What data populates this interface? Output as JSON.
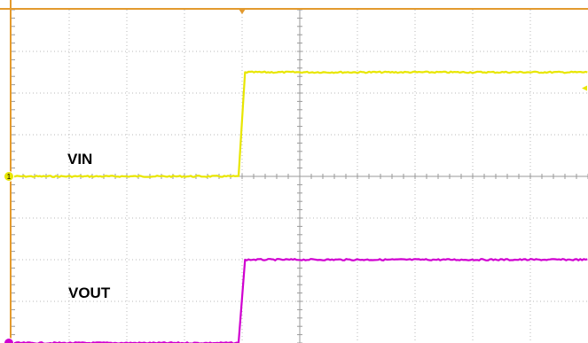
{
  "chart_data": {
    "type": "line",
    "title": "",
    "xlabel": "",
    "ylabel": "",
    "grid": true,
    "x_divisions": 10,
    "y_divisions": 8,
    "xlim": [
      0,
      10
    ],
    "ylim": [
      -4,
      4
    ],
    "trigger_position_div": 4,
    "series": [
      {
        "name": "VIN",
        "channel": "1",
        "color": "#e8e600",
        "x": [
          0,
          3.95,
          4.05,
          10
        ],
        "values": [
          0,
          0,
          2.5,
          2.5
        ]
      },
      {
        "name": "VOUT",
        "channel": "",
        "color": "#d000d0",
        "x": [
          0,
          3.95,
          4.05,
          10
        ],
        "values": [
          -4,
          -4,
          -2,
          -2
        ]
      }
    ]
  },
  "colors": {
    "frame": "#e39a2e",
    "grid": "#b8b8b8",
    "background": "#ffffff"
  }
}
